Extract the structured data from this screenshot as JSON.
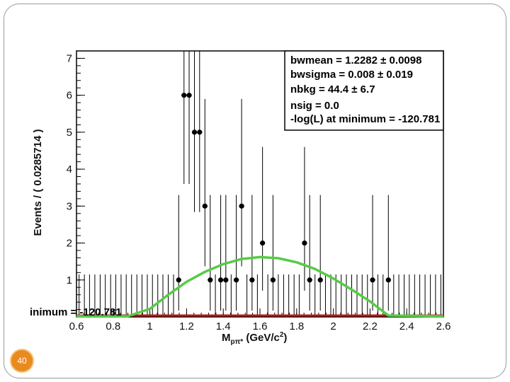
{
  "slide": {
    "page_number": "40"
  },
  "chart_data": {
    "type": "scatter",
    "xlabel_main": "M",
    "xlabel_sub": "pπ*",
    "xlabel_units_pre": " (GeV/c",
    "xlabel_units_sup": "2",
    "xlabel_units_post": ")",
    "ylabel": "Events / ( 0.0285714 )",
    "xlim": [
      0.6,
      2.6
    ],
    "ylim": [
      0,
      7.2
    ],
    "x_ticks": [
      0.6,
      0.8,
      1,
      1.2,
      1.4,
      1.6,
      1.8,
      2,
      2.2,
      2.4,
      2.6
    ],
    "x_tick_labels": [
      "0.6",
      "0.8",
      "1",
      "1.2",
      "1.4",
      "1.6",
      "1.8",
      "2",
      "2.2",
      "2.4",
      "2.6"
    ],
    "y_ticks": [
      1,
      2,
      3,
      4,
      5,
      6,
      7
    ],
    "y_tick_labels": [
      "1",
      "2",
      "3",
      "4",
      "5",
      "6",
      "7"
    ],
    "data_points": {
      "x": [
        0.614,
        0.643,
        0.671,
        0.7,
        0.729,
        0.757,
        0.786,
        0.814,
        0.843,
        0.871,
        0.9,
        0.929,
        0.957,
        0.986,
        1.014,
        1.043,
        1.071,
        1.1,
        1.129,
        1.157,
        1.186,
        1.214,
        1.243,
        1.271,
        1.3,
        1.329,
        1.357,
        1.386,
        1.414,
        1.443,
        1.471,
        1.5,
        1.529,
        1.557,
        1.586,
        1.614,
        1.643,
        1.671,
        1.7,
        1.729,
        1.757,
        1.786,
        1.814,
        1.843,
        1.871,
        1.9,
        1.929,
        1.957,
        1.986,
        2.014,
        2.043,
        2.071,
        2.1,
        2.129,
        2.157,
        2.186,
        2.214,
        2.243,
        2.271,
        2.3,
        2.329,
        2.357,
        2.386,
        2.414,
        2.443,
        2.471,
        2.5,
        2.529,
        2.557,
        2.586
      ],
      "y": [
        0,
        0,
        0,
        0,
        0,
        0,
        0,
        0,
        0,
        0,
        0,
        0,
        0,
        0,
        0,
        0,
        0,
        0,
        0,
        1,
        6,
        6,
        5,
        5,
        3,
        1,
        0,
        1,
        1,
        0,
        1,
        3,
        0,
        1,
        0,
        2,
        0,
        1,
        0,
        0,
        0,
        0,
        0,
        2,
        1,
        0,
        1,
        0,
        0,
        0,
        0,
        0,
        0,
        0,
        0,
        0,
        1,
        0,
        0,
        1,
        0,
        0,
        0,
        0,
        0,
        0,
        0,
        0,
        0,
        0
      ],
      "err_high": [
        1.15,
        1.15,
        1.15,
        1.15,
        1.15,
        1.15,
        1.15,
        1.15,
        1.15,
        1.15,
        1.15,
        1.15,
        1.15,
        1.15,
        1.15,
        1.15,
        1.15,
        1.15,
        1.15,
        2.3,
        3.6,
        3.6,
        3.4,
        3.4,
        2.9,
        2.3,
        1.15,
        2.3,
        2.3,
        1.15,
        2.3,
        2.9,
        1.15,
        2.3,
        1.15,
        2.6,
        1.15,
        2.3,
        1.15,
        1.15,
        1.15,
        1.15,
        1.15,
        2.6,
        2.3,
        1.15,
        2.3,
        1.15,
        1.15,
        1.15,
        1.15,
        1.15,
        1.15,
        1.15,
        1.15,
        1.15,
        2.3,
        1.15,
        1.15,
        2.3,
        1.15,
        1.15,
        1.15,
        1.15,
        1.15,
        1.15,
        1.15,
        1.15,
        1.15,
        1.15
      ],
      "err_low": [
        0,
        0,
        0,
        0,
        0,
        0,
        0,
        0,
        0,
        0,
        0,
        0,
        0,
        0,
        0,
        0,
        0,
        0,
        0,
        0.83,
        2.4,
        2.4,
        2.16,
        2.16,
        1.63,
        0.83,
        0,
        0.83,
        0.83,
        0,
        0.83,
        1.63,
        0,
        0.83,
        0,
        1.29,
        0,
        0.83,
        0,
        0,
        0,
        0,
        0,
        1.29,
        0.83,
        0,
        0.83,
        0,
        0,
        0,
        0,
        0,
        0,
        0,
        0,
        0,
        0.83,
        0,
        0,
        0.83,
        0,
        0,
        0,
        0,
        0,
        0,
        0,
        0,
        0,
        0
      ]
    },
    "fit_curve": {
      "color": "#55cc44",
      "x": [
        0.6,
        0.88,
        1.0,
        1.1,
        1.2,
        1.3,
        1.4,
        1.5,
        1.6,
        1.7,
        1.8,
        1.9,
        2.0,
        2.1,
        2.2,
        2.3,
        2.6
      ],
      "y": [
        0,
        0,
        0.2,
        0.58,
        0.93,
        1.2,
        1.41,
        1.55,
        1.6,
        1.57,
        1.46,
        1.28,
        1.02,
        0.72,
        0.4,
        0.02,
        0
      ]
    },
    "nll_curve": {
      "color": "#b51a1a",
      "y_value": 0
    },
    "stats_box": {
      "lines": [
        "bwmean =  1.2282 ± 0.0098",
        "bwsigma =  0.008 ± 0.019",
        "nbkg =  44.4 ± 6.7",
        "nsig =  0.0",
        "-log(L) at minimum = -120.781"
      ]
    },
    "overlay_label": "inimum = -120.781",
    "colors": {
      "points": "#000000",
      "frame": "#000000"
    }
  }
}
